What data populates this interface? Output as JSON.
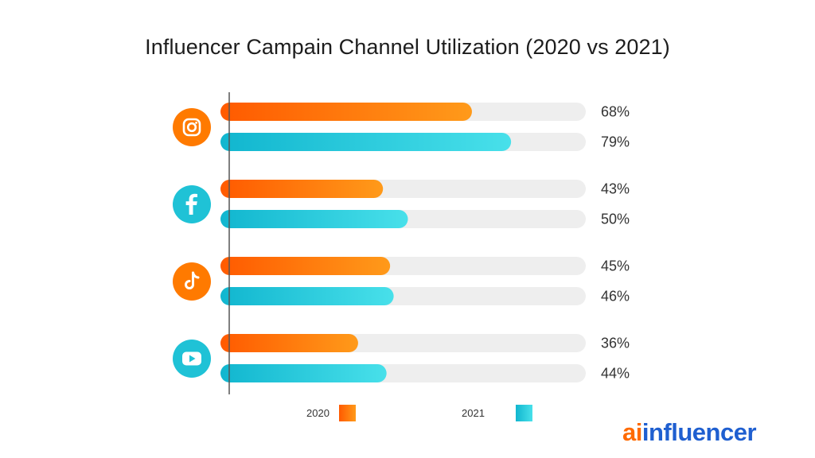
{
  "title": "Influencer Campain Channel Utilization (2020 vs 2021)",
  "colors": {
    "series_2020": "#ff7a00",
    "series_2021": "#1fc2d6",
    "track": "#eeeeee",
    "axis": "#555555"
  },
  "chart_data": {
    "type": "bar",
    "orientation": "horizontal",
    "categories": [
      "instagram-icon",
      "facebook-icon",
      "tiktok-icon",
      "youtube-icon"
    ],
    "series": [
      {
        "name": "2020",
        "values": [
          68,
          43,
          45,
          36
        ],
        "labels": [
          "68%",
          "43%",
          "45%",
          "36%"
        ]
      },
      {
        "name": "2021",
        "values": [
          79,
          50,
          46,
          44
        ],
        "labels": [
          "79%",
          "50%",
          "46%",
          "44%"
        ]
      }
    ],
    "xlim": [
      0,
      100
    ],
    "grid": false,
    "legend": "bottom"
  },
  "logo": {
    "prefix": "ai",
    "rest": "influencer"
  }
}
